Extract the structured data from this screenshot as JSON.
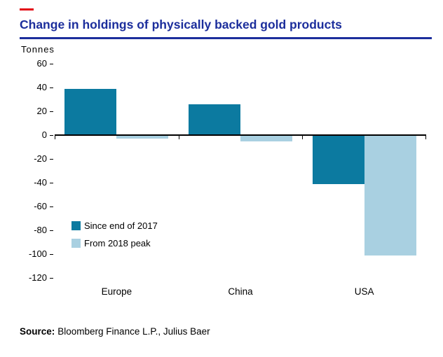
{
  "page": {
    "title": "Change in holdings of physically backed gold products",
    "unit_label": "Tonnes",
    "source": {
      "label": "Source:",
      "text": "Bloomberg Finance L.P., Julius Baer"
    }
  },
  "colors": {
    "title_blue": "#1c2e9c",
    "brand_red": "#e30613",
    "axis_black": "#000000",
    "series_dark_teal": "#0c7aa0",
    "series_light_blue": "#a9d0e1"
  },
  "chart_data": {
    "type": "bar",
    "title": "Change in holdings of physically backed gold products",
    "ylabel": "Tonnes",
    "xlabel": "",
    "categories": [
      "Europe",
      "China",
      "USA"
    ],
    "series": [
      {
        "name": "Since end of 2017",
        "color": "#0c7aa0",
        "values": [
          39,
          26,
          -41
        ]
      },
      {
        "name": "From 2018 peak",
        "color": "#a9d0e1",
        "values": [
          -3,
          -5,
          -101
        ]
      }
    ],
    "ylim": [
      -120,
      60
    ],
    "yticks": [
      60,
      40,
      20,
      0,
      -20,
      -40,
      -60,
      -80,
      -100,
      -120
    ],
    "grid": false,
    "legend_position": "inside-lower-left",
    "source": "Bloomberg Finance L.P., Julius Baer"
  }
}
